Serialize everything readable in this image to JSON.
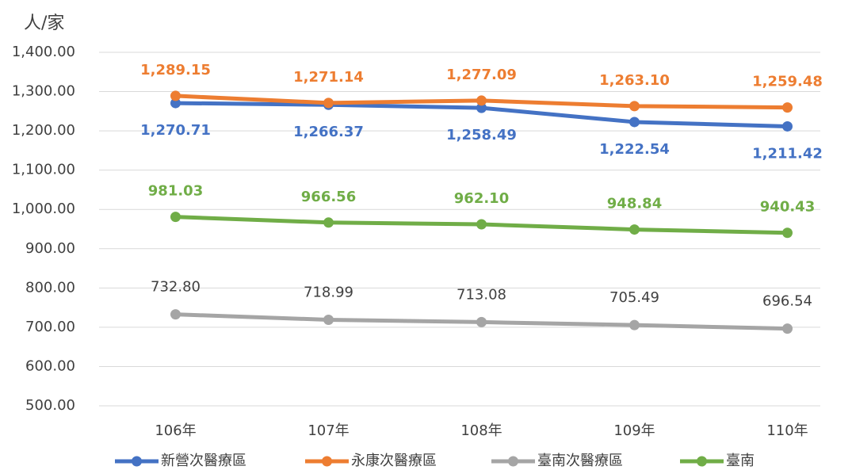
{
  "chart_data": {
    "type": "line",
    "y_label": "人/家",
    "categories": [
      "106年",
      "107年",
      "108年",
      "109年",
      "110年"
    ],
    "ylim": [
      500,
      1400
    ],
    "yticks": [
      {
        "value": 500,
        "label": "500.00"
      },
      {
        "value": 600,
        "label": "600.00"
      },
      {
        "value": 700,
        "label": "700.00"
      },
      {
        "value": 800,
        "label": "800.00"
      },
      {
        "value": 900,
        "label": "900.00"
      },
      {
        "value": 1000,
        "label": "1,000.00"
      },
      {
        "value": 1100,
        "label": "1,100.00"
      },
      {
        "value": 1200,
        "label": "1,200.00"
      },
      {
        "value": 1300,
        "label": "1,300.00"
      },
      {
        "value": 1400,
        "label": "1,400.00"
      }
    ],
    "grid": true,
    "legend": "bottom",
    "series": [
      {
        "name": "新營次醫療區",
        "color": "#4472c4",
        "values": [
          1270.71,
          1266.37,
          1258.49,
          1222.54,
          1211.42
        ],
        "value_labels": [
          "1,270.71",
          "1,266.37",
          "1,258.49",
          "1,222.54",
          "1,211.42"
        ]
      },
      {
        "name": "永康次醫療區",
        "color": "#ed7d31",
        "values": [
          1289.15,
          1271.14,
          1277.09,
          1263.1,
          1259.48
        ],
        "value_labels": [
          "1,289.15",
          "1,271.14",
          "1,277.09",
          "1,263.10",
          "1,259.48"
        ]
      },
      {
        "name": "臺南次醫療區",
        "color": "#a5a5a5",
        "values": [
          732.8,
          718.99,
          713.08,
          705.49,
          696.54
        ],
        "value_labels": [
          "732.80",
          "718.99",
          "713.08",
          "705.49",
          "696.54"
        ]
      },
      {
        "name": "臺南",
        "color": "#70ad47",
        "values": [
          981.03,
          966.56,
          962.1,
          948.84,
          940.43
        ],
        "value_labels": [
          "981.03",
          "966.56",
          "962.10",
          "948.84",
          "940.43"
        ]
      }
    ]
  }
}
